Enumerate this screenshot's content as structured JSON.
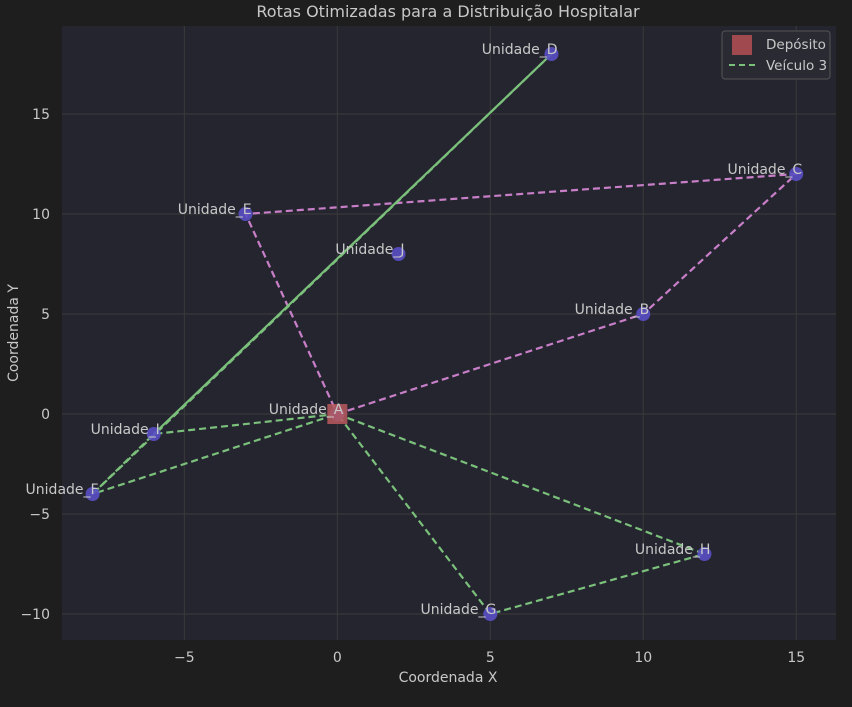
{
  "chart_data": {
    "type": "scatter",
    "title": "Rotas Otimizadas para a Distribuição Hospitalar",
    "xlabel": "Coordenada X",
    "ylabel": "Coordenada Y",
    "xlim": [
      -9,
      16.3
    ],
    "ylim": [
      -11.3,
      19.4
    ],
    "xticks": [
      -5,
      0,
      5,
      10,
      15
    ],
    "yticks": [
      -10,
      -5,
      0,
      5,
      10,
      15
    ],
    "xtick_labels": [
      "−5",
      "0",
      "5",
      "10",
      "15"
    ],
    "ytick_labels": [
      "−10",
      "−5",
      "0",
      "5",
      "10",
      "15"
    ],
    "grid": true,
    "legend_position": "top-right",
    "legend": [
      {
        "label": "Depósito",
        "kind": "depot"
      },
      {
        "label": "Veículo 3",
        "kind": "route",
        "color": "#7bc07b"
      }
    ],
    "depot": {
      "label": "Unidade_A",
      "x": 0,
      "y": 0,
      "color": "#b85a5e"
    },
    "points": [
      {
        "label": "Unidade_A",
        "x": 0,
        "y": 0
      },
      {
        "label": "Unidade_B",
        "x": 10,
        "y": 5
      },
      {
        "label": "Unidade_C",
        "x": 15,
        "y": 12
      },
      {
        "label": "Unidade_D",
        "x": 7,
        "y": 18
      },
      {
        "label": "Unidade_E",
        "x": -3,
        "y": 10
      },
      {
        "label": "Unidade_F",
        "x": -8,
        "y": -4
      },
      {
        "label": "Unidade_G",
        "x": 5,
        "y": -10
      },
      {
        "label": "Unidade_H",
        "x": 12,
        "y": -7
      },
      {
        "label": "Unidade_I",
        "x": -6,
        "y": -1
      },
      {
        "label": "Unidade_J",
        "x": 2,
        "y": 8
      }
    ],
    "routes": [
      {
        "color": "#c87fc8",
        "style": "dashed",
        "path": [
          [
            0,
            0
          ],
          [
            10,
            5
          ],
          [
            15,
            12
          ],
          [
            -3,
            10
          ],
          [
            0,
            0
          ]
        ]
      },
      {
        "color": "#7bc07b",
        "style": "solid",
        "path": [
          [
            7,
            18
          ],
          [
            -6,
            -1
          ]
        ]
      },
      {
        "color": "#7bc07b",
        "style": "dashed",
        "path": [
          [
            7,
            18
          ],
          [
            -8,
            -4
          ]
        ]
      },
      {
        "color": "#7bc07b",
        "style": "dashed",
        "path": [
          [
            0,
            0
          ],
          [
            -6,
            -1
          ],
          [
            -8,
            -4
          ],
          [
            0,
            0
          ]
        ]
      },
      {
        "color": "#7bc07b",
        "style": "dashed",
        "path": [
          [
            0,
            0
          ],
          [
            12,
            -7
          ],
          [
            5,
            -10
          ],
          [
            0,
            0
          ]
        ]
      }
    ],
    "colors": {
      "background": "#1e1e1e",
      "plot_area": "#252530",
      "grid": "#3a3a3a",
      "text": "#c8c8c8",
      "point": "#5a4fc4"
    }
  }
}
